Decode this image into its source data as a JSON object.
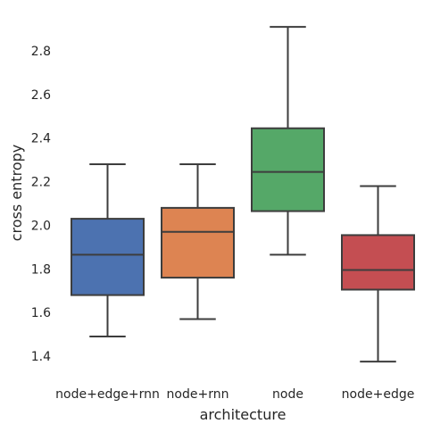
{
  "chart_data": {
    "type": "box",
    "xlabel": "architecture",
    "ylabel": "cross entropy",
    "ylim": [
      1.3,
      2.95
    ],
    "yticks": [
      1.4,
      1.6,
      1.8,
      2.0,
      2.2,
      2.4,
      2.6,
      2.8
    ],
    "ytick_labels": [
      "1.4",
      "1.6",
      "1.8",
      "2.0",
      "2.2",
      "2.4",
      "2.6",
      "2.8"
    ],
    "grid": false,
    "categories": [
      "node+edge+rnn",
      "node+rnn",
      "node",
      "node+edge"
    ],
    "boxes": [
      {
        "category": "node+edge+rnn",
        "min": 1.49,
        "q1": 1.68,
        "median": 1.865,
        "q3": 2.03,
        "max": 2.28,
        "color": "#4c72b0"
      },
      {
        "category": "node+rnn",
        "min": 1.57,
        "q1": 1.76,
        "median": 1.97,
        "q3": 2.08,
        "max": 2.28,
        "color": "#dd8452"
      },
      {
        "category": "node",
        "min": 1.865,
        "q1": 2.065,
        "median": 2.245,
        "q3": 2.445,
        "max": 2.91,
        "color": "#55a868"
      },
      {
        "category": "node+edge",
        "min": 1.375,
        "q1": 1.705,
        "median": 1.795,
        "q3": 1.955,
        "max": 2.18,
        "color": "#c44e52"
      }
    ]
  }
}
